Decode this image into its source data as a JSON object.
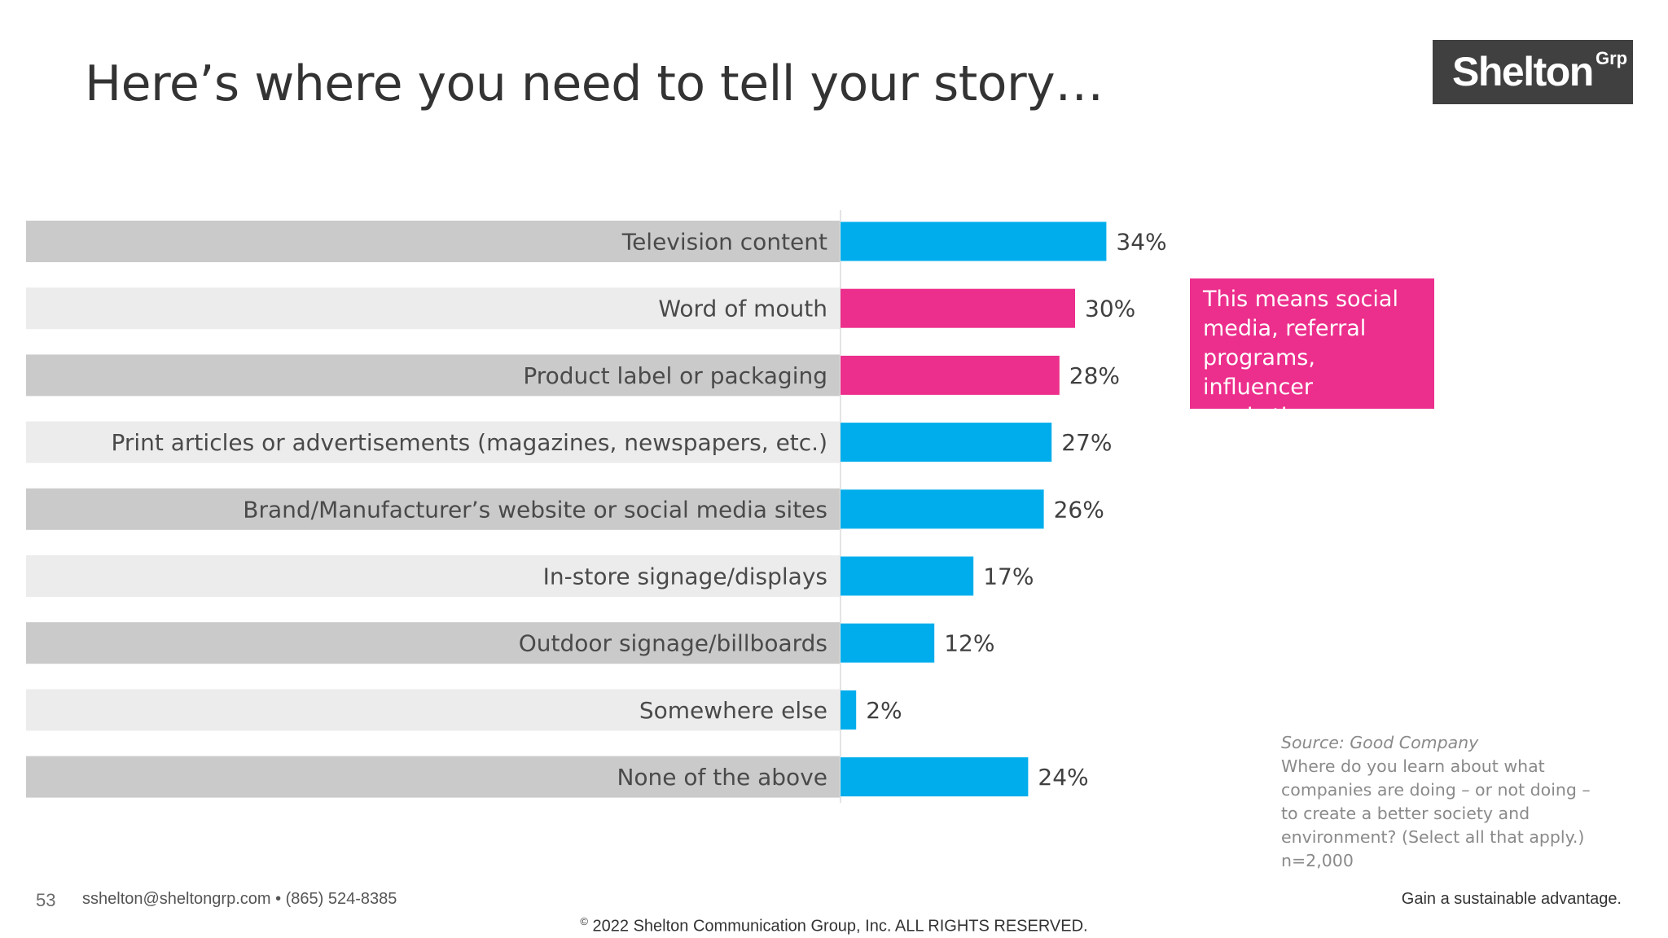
{
  "slide": {
    "title": "Here’s where you need to tell your story…"
  },
  "logo": {
    "text": "Shelton",
    "superscript": "Grp"
  },
  "colors": {
    "bar_blue": "#00adec",
    "bar_pink": "#ec2e8c",
    "label_band_dark": "#cacaca",
    "label_band_light": "#ececec",
    "logo_bg": "#404040"
  },
  "chart_data": {
    "type": "bar",
    "orientation": "horizontal",
    "categories": [
      "Television content",
      "Word of mouth",
      "Product label or packaging",
      "Print articles or advertisements (magazines, newspapers, etc.)",
      "Brand/Manufacturer’s website or social media sites",
      "In-store signage/displays",
      "Outdoor signage/billboards",
      "Somewhere else",
      "None of the above"
    ],
    "values": [
      34,
      30,
      28,
      27,
      26,
      17,
      12,
      2,
      24
    ],
    "value_labels": [
      "34%",
      "30%",
      "28%",
      "27%",
      "26%",
      "17%",
      "12%",
      "2%",
      "24%"
    ],
    "highlighted": [
      false,
      true,
      true,
      false,
      false,
      false,
      false,
      false,
      false
    ],
    "unit": "%",
    "xlim": [
      0,
      100
    ],
    "grid": false,
    "legend": "none"
  },
  "callout": {
    "lines": [
      "This means social",
      "media, referral",
      "programs, influencer",
      "marketing"
    ]
  },
  "source": {
    "title": "Source: Good Company",
    "question_lines": [
      "Where do you learn about what",
      "companies are doing – or not doing –",
      "to create a better society and",
      "environment? (Select all that apply.)"
    ],
    "sample": "n=2,000"
  },
  "footer": {
    "page_number": "53",
    "contact": "sshelton@sheltongrp.com • (865) 524-8385",
    "tagline": "Gain a sustainable advantage.",
    "copyright_symbol": "©",
    "copyright": "2022 Shelton Communication Group, Inc.  ALL RIGHTS RESERVED."
  }
}
